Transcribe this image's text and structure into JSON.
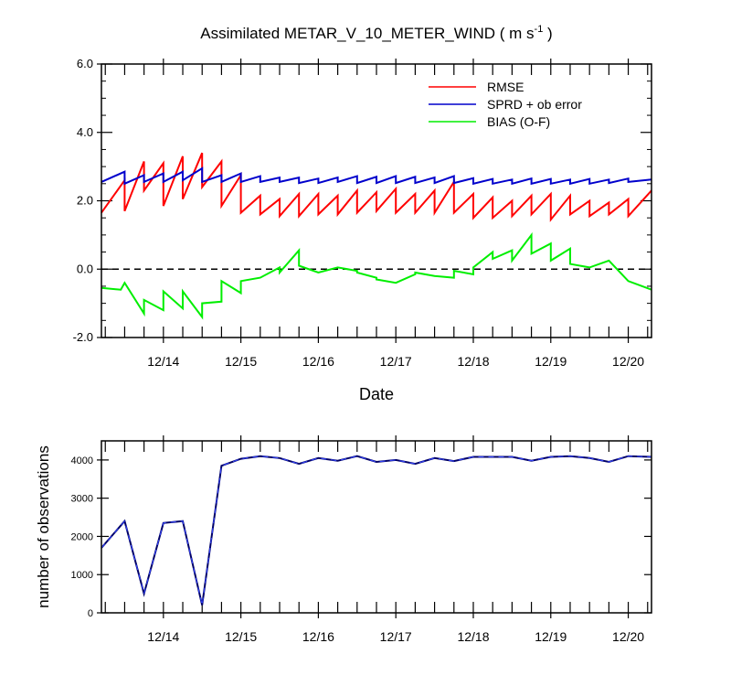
{
  "chart_data": [
    {
      "type": "line",
      "title": "Assimilated METAR_V_10_METER_WIND ( m s",
      "title_sup": "-1",
      "title_end": " )",
      "xlabel": "Date",
      "ylabel": "",
      "xlim": [
        13.2,
        20.3
      ],
      "ylim": [
        -2.0,
        6.0
      ],
      "yticks": [
        -2.0,
        0.0,
        2.0,
        4.0,
        6.0
      ],
      "ytick_labels": [
        "-2.0",
        "0.0",
        "2.0",
        "4.0",
        "6.0"
      ],
      "xticks": [
        14,
        15,
        16,
        17,
        18,
        19,
        20
      ],
      "xtick_labels": [
        "12/14",
        "12/15",
        "12/16",
        "12/17",
        "12/18",
        "12/19",
        "12/20"
      ],
      "zero_line": true,
      "legend_position": "top-right",
      "series": [
        {
          "name": "RMSE",
          "color": "#ff0000",
          "x": [
            13.2,
            13.5,
            13.5,
            13.75,
            13.75,
            14.0,
            14.0,
            14.25,
            14.25,
            14.5,
            14.5,
            14.75,
            14.75,
            15.0,
            15.0,
            15.25,
            15.25,
            15.5,
            15.5,
            15.75,
            15.75,
            16.0,
            16.0,
            16.25,
            16.25,
            16.5,
            16.5,
            16.75,
            16.75,
            17.0,
            17.0,
            17.25,
            17.25,
            17.5,
            17.5,
            17.75,
            17.75,
            18.0,
            18.0,
            18.25,
            18.25,
            18.5,
            18.5,
            18.75,
            18.75,
            19.0,
            19.0,
            19.25,
            19.25,
            19.5,
            19.5,
            19.75,
            19.75,
            20.0,
            20.0,
            20.3
          ],
          "values": [
            1.65,
            2.6,
            1.7,
            3.15,
            2.3,
            3.1,
            1.85,
            3.3,
            2.05,
            3.4,
            2.4,
            3.15,
            1.85,
            2.75,
            1.65,
            2.15,
            1.6,
            2.05,
            1.55,
            2.2,
            1.55,
            2.2,
            1.6,
            2.15,
            1.6,
            2.3,
            1.65,
            2.25,
            1.7,
            2.35,
            1.65,
            2.2,
            1.65,
            2.3,
            1.65,
            2.55,
            1.65,
            2.2,
            1.5,
            2.1,
            1.5,
            2.0,
            1.55,
            2.15,
            1.6,
            2.2,
            1.45,
            2.15,
            1.6,
            2.0,
            1.55,
            1.95,
            1.6,
            2.05,
            1.55,
            2.3
          ]
        },
        {
          "name": "SPRD + ob error",
          "color": "#0000cc",
          "x": [
            13.2,
            13.5,
            13.5,
            13.75,
            13.75,
            14.0,
            14.0,
            14.25,
            14.25,
            14.5,
            14.5,
            14.75,
            14.75,
            15.0,
            15.0,
            15.25,
            15.25,
            15.5,
            15.5,
            15.75,
            15.75,
            16.0,
            16.0,
            16.25,
            16.25,
            16.5,
            16.5,
            16.75,
            16.75,
            17.0,
            17.0,
            17.25,
            17.25,
            17.5,
            17.5,
            17.75,
            17.75,
            18.0,
            18.0,
            18.25,
            18.25,
            18.5,
            18.5,
            18.75,
            18.75,
            19.0,
            19.0,
            19.25,
            19.25,
            19.5,
            19.5,
            19.75,
            19.75,
            20.0,
            20.0,
            20.3
          ],
          "values": [
            2.55,
            2.85,
            2.5,
            2.75,
            2.55,
            2.8,
            2.55,
            2.85,
            2.6,
            2.95,
            2.55,
            2.75,
            2.55,
            2.8,
            2.55,
            2.72,
            2.55,
            2.68,
            2.55,
            2.68,
            2.52,
            2.65,
            2.52,
            2.68,
            2.55,
            2.72,
            2.52,
            2.7,
            2.52,
            2.72,
            2.52,
            2.7,
            2.52,
            2.68,
            2.52,
            2.72,
            2.52,
            2.66,
            2.5,
            2.64,
            2.5,
            2.62,
            2.5,
            2.65,
            2.5,
            2.64,
            2.5,
            2.62,
            2.5,
            2.64,
            2.5,
            2.62,
            2.52,
            2.65,
            2.55,
            2.62
          ]
        },
        {
          "name": "BIAS (O-F)",
          "color": "#00ee00",
          "x": [
            13.2,
            13.45,
            13.5,
            13.75,
            13.75,
            14.0,
            14.0,
            14.25,
            14.25,
            14.5,
            14.5,
            14.75,
            14.75,
            15.0,
            15.0,
            15.25,
            15.5,
            15.5,
            15.75,
            15.75,
            16.0,
            16.25,
            16.5,
            16.5,
            16.75,
            16.75,
            17.0,
            17.25,
            17.25,
            17.5,
            17.75,
            17.75,
            18.0,
            18.0,
            18.25,
            18.25,
            18.5,
            18.5,
            18.75,
            18.75,
            19.0,
            19.0,
            19.25,
            19.25,
            19.5,
            19.75,
            20.0,
            20.3
          ],
          "values": [
            -0.55,
            -0.6,
            -0.4,
            -1.3,
            -0.9,
            -1.2,
            -0.65,
            -1.15,
            -0.65,
            -1.4,
            -1.0,
            -0.95,
            -0.35,
            -0.7,
            -0.35,
            -0.25,
            0.05,
            -0.1,
            0.55,
            0.1,
            -0.1,
            0.05,
            -0.05,
            -0.1,
            -0.25,
            -0.3,
            -0.4,
            -0.15,
            -0.1,
            -0.2,
            -0.25,
            -0.05,
            -0.15,
            0.05,
            0.5,
            0.3,
            0.55,
            0.25,
            1.0,
            0.45,
            0.75,
            0.25,
            0.6,
            0.15,
            0.05,
            0.25,
            -0.35,
            -0.6
          ]
        }
      ]
    },
    {
      "type": "line",
      "ylabel": "number of observations",
      "xlim": [
        13.2,
        20.3
      ],
      "ylim": [
        0,
        4500
      ],
      "yticks": [
        0,
        1000,
        2000,
        3000,
        4000
      ],
      "ytick_labels": [
        "0",
        "1000",
        "2000",
        "3000",
        "4000"
      ],
      "xticks": [
        14,
        15,
        16,
        17,
        18,
        19,
        20
      ],
      "xtick_labels": [
        "12/14",
        "12/15",
        "12/16",
        "12/17",
        "12/18",
        "12/19",
        "12/20"
      ],
      "series": [
        {
          "name": "observations",
          "color": "#000066",
          "x": [
            13.2,
            13.5,
            13.75,
            14.0,
            14.25,
            14.5,
            14.75,
            15.0,
            15.25,
            15.5,
            15.75,
            16.0,
            16.25,
            16.5,
            16.75,
            17.0,
            17.25,
            17.5,
            17.75,
            18.0,
            18.25,
            18.5,
            18.75,
            19.0,
            19.25,
            19.5,
            19.75,
            20.0,
            20.3
          ],
          "values": [
            1700,
            2400,
            500,
            2350,
            2400,
            200,
            3850,
            4030,
            4100,
            4050,
            3900,
            4050,
            3980,
            4100,
            3950,
            4000,
            3900,
            4050,
            3970,
            4080,
            4080,
            4080,
            3980,
            4080,
            4100,
            4050,
            3950,
            4100,
            4080
          ]
        }
      ]
    }
  ]
}
